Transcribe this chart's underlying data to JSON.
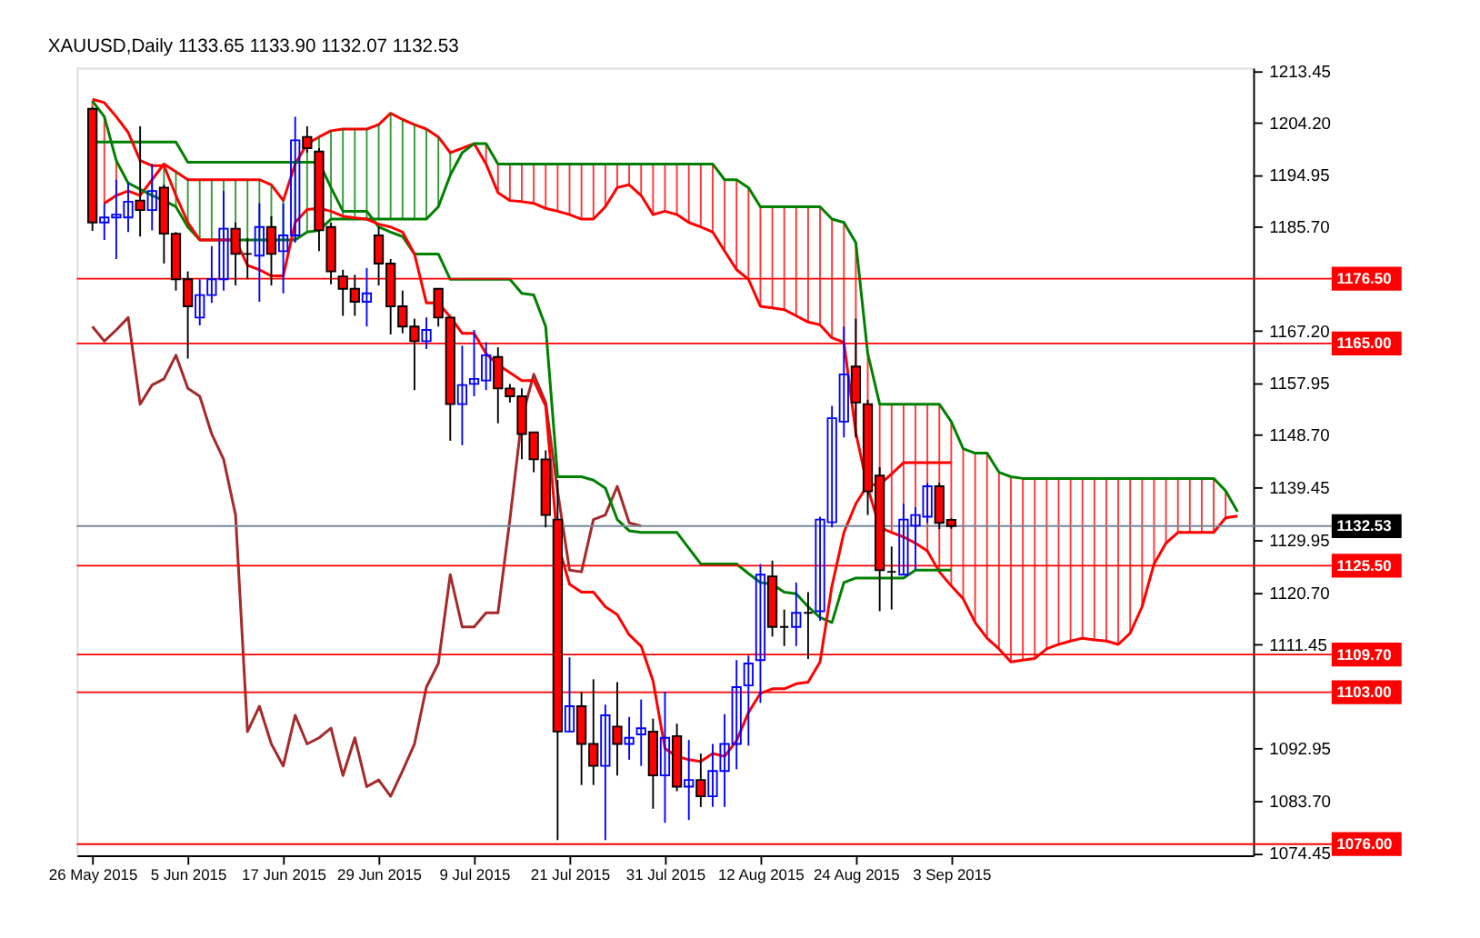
{
  "chart_data": {
    "type": "candlestick",
    "title": "XAUUSD,Daily  1133.65 1133.90 1132.07 1132.53",
    "categories": [
      "26 May 2015",
      null,
      null,
      null,
      null,
      null,
      null,
      null,
      "5 Jun 2015",
      null,
      null,
      null,
      null,
      null,
      null,
      null,
      "17 Jun 2015",
      null,
      null,
      null,
      null,
      null,
      null,
      null,
      "29 Jun 2015",
      null,
      null,
      null,
      null,
      null,
      null,
      null,
      "9 Jul 2015",
      null,
      null,
      null,
      null,
      null,
      null,
      null,
      "21 Jul 2015",
      null,
      null,
      null,
      null,
      null,
      null,
      null,
      "31 Jul 2015",
      null,
      null,
      null,
      null,
      null,
      null,
      null,
      "12 Aug 2015",
      null,
      null,
      null,
      null,
      null,
      null,
      null,
      "24 Aug 2015",
      null,
      null,
      null,
      null,
      null,
      null,
      null,
      "3 Sep 2015",
      null,
      null,
      null,
      null,
      null,
      null,
      null,
      null,
      null,
      null,
      null,
      null,
      null,
      null,
      null,
      null,
      null,
      null,
      null,
      null,
      null,
      null,
      null,
      null
    ],
    "ohlc": [
      [
        1206.7,
        1207.0,
        1185.0,
        1186.5
      ],
      [
        1186.5,
        1189.9,
        1183.4,
        1187.4
      ],
      [
        1187.4,
        1194.1,
        1180.0,
        1187.9
      ],
      [
        1187.4,
        1193.5,
        1184.8,
        1190.2
      ],
      [
        1190.4,
        1203.6,
        1184.0,
        1188.7
      ],
      [
        1188.7,
        1196.9,
        1185.1,
        1192.1
      ],
      [
        1192.7,
        1193.2,
        1179.2,
        1184.5
      ],
      [
        1184.5,
        1184.8,
        1174.4,
        1176.4
      ],
      [
        1176.4,
        1177.8,
        1162.3,
        1171.6
      ],
      [
        1169.6,
        1176.4,
        1168.2,
        1173.6
      ],
      [
        1173.6,
        1182.3,
        1172.2,
        1176.4
      ],
      [
        1176.4,
        1192.1,
        1174.4,
        1185.4
      ],
      [
        1185.4,
        1186.5,
        1175.3,
        1180.9
      ],
      [
        1180.9,
        1183.7,
        1176.4,
        1180.9
      ],
      [
        1180.6,
        1189.9,
        1172.4,
        1185.7
      ],
      [
        1185.7,
        1187.6,
        1175.3,
        1180.9
      ],
      [
        1181.4,
        1189.9,
        1173.9,
        1184.2
      ],
      [
        1184.2,
        1205.3,
        1182.9,
        1201.1
      ],
      [
        1201.7,
        1203.6,
        1198.9,
        1199.7
      ],
      [
        1199.1,
        1199.7,
        1181.4,
        1185.1
      ],
      [
        1185.7,
        1186.5,
        1175.5,
        1177.8
      ],
      [
        1176.9,
        1178.1,
        1169.9,
        1174.7
      ],
      [
        1174.7,
        1177.2,
        1169.9,
        1172.4
      ],
      [
        1172.4,
        1178.4,
        1168.0,
        1173.9
      ],
      [
        1184.2,
        1185.7,
        1175.3,
        1179.2
      ],
      [
        1179.2,
        1180.0,
        1166.6,
        1171.6
      ],
      [
        1171.6,
        1174.4,
        1166.8,
        1168.0
      ],
      [
        1168.0,
        1169.4,
        1156.7,
        1165.4
      ],
      [
        1165.4,
        1169.6,
        1164.0,
        1167.4
      ],
      [
        1174.7,
        1174.7,
        1168.0,
        1169.6
      ],
      [
        1169.6,
        1169.6,
        1147.7,
        1154.2
      ],
      [
        1154.2,
        1164.6,
        1146.9,
        1157.6
      ],
      [
        1157.8,
        1167.4,
        1155.6,
        1158.7
      ],
      [
        1158.4,
        1165.2,
        1156.7,
        1162.9
      ],
      [
        1162.6,
        1164.3,
        1150.8,
        1157.0
      ],
      [
        1157.0,
        1157.8,
        1154.5,
        1155.6
      ],
      [
        1155.6,
        1157.0,
        1144.4,
        1148.9
      ],
      [
        1149.2,
        1149.2,
        1142.1,
        1144.4
      ],
      [
        1144.4,
        1146.0,
        1132.3,
        1134.5
      ],
      [
        1133.7,
        1140.7,
        1076.7,
        1096.0
      ],
      [
        1096.0,
        1109.2,
        1096.0,
        1100.5
      ],
      [
        1100.5,
        1103.1,
        1086.5,
        1093.8
      ],
      [
        1093.8,
        1105.3,
        1086.5,
        1089.9
      ],
      [
        1089.9,
        1100.8,
        1076.7,
        1098.9
      ],
      [
        1096.9,
        1104.8,
        1088.2,
        1093.8
      ],
      [
        1093.8,
        1098.6,
        1091.0,
        1094.9
      ],
      [
        1095.5,
        1101.7,
        1089.9,
        1096.6
      ],
      [
        1096.0,
        1098.3,
        1082.3,
        1088.2
      ],
      [
        1088.2,
        1103.1,
        1079.8,
        1094.9
      ],
      [
        1095.2,
        1097.4,
        1085.4,
        1086.2
      ],
      [
        1086.2,
        1094.5,
        1080.3,
        1087.4
      ],
      [
        1087.4,
        1092.1,
        1082.6,
        1084.5
      ],
      [
        1084.5,
        1093.8,
        1082.6,
        1089.0
      ],
      [
        1089.0,
        1099.1,
        1082.6,
        1093.8
      ],
      [
        1093.8,
        1108.7,
        1089.3,
        1103.9
      ],
      [
        1104.2,
        1109.5,
        1093.5,
        1108.1
      ],
      [
        1108.7,
        1125.8,
        1101.1,
        1123.9
      ],
      [
        1123.6,
        1126.4,
        1112.9,
        1114.6
      ],
      [
        1114.6,
        1117.7,
        1111.2,
        1114.6
      ],
      [
        1114.6,
        1122.5,
        1111.2,
        1117.1
      ],
      [
        1117.1,
        1120.8,
        1108.9,
        1117.1
      ],
      [
        1117.4,
        1134.2,
        1115.7,
        1133.7
      ],
      [
        1133.2,
        1153.9,
        1132.3,
        1151.7
      ],
      [
        1151.1,
        1168.0,
        1148.3,
        1159.5
      ],
      [
        1160.9,
        1169.4,
        1148.3,
        1154.5
      ],
      [
        1154.2,
        1155.0,
        1134.5,
        1138.7
      ],
      [
        1141.5,
        1143.0,
        1117.4,
        1124.7
      ],
      [
        1124.4,
        1128.9,
        1117.7,
        1124.4
      ],
      [
        1123.9,
        1136.5,
        1123.9,
        1133.7
      ],
      [
        1132.6,
        1135.9,
        1124.7,
        1134.5
      ],
      [
        1134.2,
        1140.2,
        1133.1,
        1139.6
      ],
      [
        1139.6,
        1140.2,
        1132.0,
        1133.1
      ],
      [
        1133.65,
        1133.9,
        1132.07,
        1132.53
      ],
      null,
      null,
      null,
      null,
      null,
      null,
      null,
      null,
      null,
      null,
      null,
      null,
      null,
      null,
      null,
      null,
      null,
      null,
      null,
      null,
      null,
      null,
      null,
      null
    ],
    "colors": [
      "#ff0000",
      "#0000ff",
      "#0000ff",
      "#0000ff",
      "#ff0000",
      "#0000ff",
      "#ff0000",
      "#ff0000",
      "#ff0000",
      "#0000ff",
      "#0000ff",
      "#0000ff",
      "#ff0000",
      "#000000",
      "#0000ff",
      "#ff0000",
      "#0000ff",
      "#0000ff",
      "#ff0000",
      "#ff0000",
      "#ff0000",
      "#ff0000",
      "#ff0000",
      "#0000ff",
      "#ff0000",
      "#ff0000",
      "#ff0000",
      "#ff0000",
      "#0000ff",
      "#ff0000",
      "#ff0000",
      "#0000ff",
      "#0000ff",
      "#0000ff",
      "#ff0000",
      "#ff0000",
      "#ff0000",
      "#ff0000",
      "#ff0000",
      "#ff0000",
      "#0000ff",
      "#ff0000",
      "#ff0000",
      "#0000ff",
      "#ff0000",
      "#0000ff",
      "#0000ff",
      "#ff0000",
      "#0000ff",
      "#ff0000",
      "#0000ff",
      "#ff0000",
      "#0000ff",
      "#0000ff",
      "#0000ff",
      "#0000ff",
      "#0000ff",
      "#ff0000",
      "#000000",
      "#0000ff",
      "#000000",
      "#0000ff",
      "#0000ff",
      "#0000ff",
      "#ff0000",
      "#ff0000",
      "#ff0000",
      "#000000",
      "#0000ff",
      "#0000ff",
      "#0000ff",
      "#ff0000",
      "#ff0000",
      null,
      null,
      null,
      null,
      null,
      null,
      null,
      null,
      null,
      null,
      null,
      null,
      null,
      null,
      null,
      null,
      null,
      null,
      null,
      null,
      null,
      null,
      null,
      null
    ],
    "series": [
      {
        "type": "line",
        "color": "#ff0000",
        "lower": [
          1189.9,
          1189.9,
          1191.3,
          null,
          null,
          null,
          null,
          null,
          null,
          null,
          null,
          null,
          null,
          null,
          null,
          null,
          null,
          null,
          null,
          null,
          null,
          null,
          null,
          null,
          null,
          null,
          null,
          null,
          null,
          null,
          null,
          null,
          null,
          1196.9,
          1191.8,
          1190.4,
          1190.2,
          1189.9,
          1189.0,
          1188.5,
          1187.9,
          1187.1,
          1187.1,
          1189.3,
          1192.7,
          1193.2,
          1191.3,
          1187.9,
          1188.5,
          1187.9,
          1186.5,
          1185.7,
          1184.8,
          1181.4,
          1178.1,
          1176.4,
          1171.6,
          1171.3,
          1171.0,
          1169.9,
          1168.8,
          1168.3,
          1166.0,
          1165.2,
          1149.1,
          1139.3,
          1132.3,
          1131.4,
          1130.6,
          1129.5,
          1128.1,
          1124.4,
          1121.9,
          1119.6,
          1115.4,
          1112.6,
          1110.7,
          1108.4,
          1108.7,
          1109.0,
          1110.7,
          1111.5,
          1112.1,
          1112.6,
          1112.3,
          1112.1,
          1111.5,
          1113.5,
          1118.2,
          1125.8,
          1129.5,
          1131.4,
          1131.4,
          1131.4,
          1131.4,
          1134.0,
          null
        ],
        "upper": [
          1208.1,
          1205.3,
          1197.5,
          null,
          null,
          null,
          null,
          null,
          null,
          null,
          null,
          null,
          null,
          null,
          null,
          null,
          null,
          null,
          null,
          null,
          null,
          null,
          null,
          null,
          null,
          null,
          null,
          null,
          null,
          null,
          null,
          null,
          null,
          1200.5,
          1196.9,
          1196.9,
          1196.9,
          1196.9,
          1196.9,
          1196.9,
          1196.9,
          1196.9,
          1196.9,
          1196.9,
          1196.9,
          1196.9,
          1196.9,
          1196.9,
          1196.9,
          1196.9,
          1196.9,
          1196.9,
          1196.9,
          1194.1,
          1194.1,
          1192.7,
          1189.3,
          1189.3,
          1189.3,
          1189.3,
          1189.3,
          1189.3,
          1187.1,
          1186.5,
          1182.9,
          1163.2,
          1154.2,
          1154.2,
          1154.2,
          1154.2,
          1154.2,
          1154.2,
          1151.1,
          1146.3,
          1145.5,
          1145.5,
          1142.1,
          1141.3,
          1141.0,
          1141.0,
          1141.0,
          1141.0,
          1141.0,
          1141.0,
          1141.0,
          1141.0,
          1141.0,
          1141.0,
          1141.0,
          1141.0,
          1141.0,
          1141.0,
          1141.0,
          1141.0,
          1141.0,
          1138.8,
          null
        ],
        "values": [
          null,
          1189.9,
          1191.3,
          1192.1,
          1191.3,
          1194.1,
          1196.9,
          1195.5,
          1194.1,
          1194.1,
          1194.1,
          1194.1,
          1194.1,
          1194.1,
          1194.1,
          1193.2,
          1190.4,
          1196.9,
          1200.5,
          1201.7,
          1202.8,
          1203.1,
          1203.1,
          1203.1,
          1203.9,
          1205.9,
          1204.8,
          1203.9,
          1203.1,
          1201.7,
          1198.9,
          1199.7,
          1200.5,
          1196.9,
          1191.8,
          1190.4,
          1190.2,
          1189.9,
          1189.0,
          1188.5,
          1187.9,
          1187.1,
          1187.1,
          1189.3,
          1192.7,
          1193.2,
          1191.3,
          1187.9,
          1188.5,
          1187.9,
          1186.5,
          1185.7,
          1184.8,
          1181.4,
          1178.1,
          1176.4,
          1171.6,
          1171.3,
          1171.0,
          1169.9,
          1168.8,
          1168.3,
          1166.0,
          1165.2,
          1149.1,
          1139.3,
          1132.3,
          1131.4,
          1130.6,
          1129.5,
          1128.1,
          1124.4,
          1121.9,
          1119.6,
          1115.4,
          1112.6,
          1110.7,
          1108.4,
          1108.7,
          1109.0,
          1110.7,
          1111.5,
          1112.1,
          1112.6,
          1112.3,
          1112.1,
          1111.5,
          1113.5,
          1118.2,
          1125.8,
          1129.5,
          1131.4,
          1131.4,
          1131.4,
          1131.4,
          1134.0,
          1134.3
        ]
      },
      {
        "type": "line",
        "color": "#008000",
        "lower": [
          null,
          null,
          null,
          null,
          null,
          1191.3,
          1190.4,
          1189.3,
          1185.7,
          1183.4,
          1183.4,
          1183.4,
          1183.4,
          1183.4,
          1183.4,
          1183.4,
          1183.4,
          1183.4,
          1184.8,
          1185.1,
          1187.1,
          1187.1,
          1187.1,
          1187.1,
          1187.1,
          1187.1,
          1187.1,
          1187.1,
          1187.1,
          1189.3,
          1194.9,
          null,
          null,
          null,
          null,
          null,
          null,
          null,
          null,
          null,
          null,
          null,
          null,
          null,
          null,
          null,
          null,
          null,
          null,
          null,
          null,
          null,
          null,
          null,
          null,
          null,
          null,
          null,
          null,
          null,
          null,
          null,
          null,
          null,
          null,
          null,
          null,
          null,
          null,
          null,
          null,
          null,
          null,
          null,
          null,
          null,
          null,
          null,
          null,
          null,
          null,
          null,
          null,
          null,
          null,
          null,
          null,
          null,
          null,
          null,
          null,
          null,
          null,
          null,
          null,
          null,
          null
        ],
        "upper": [
          null,
          null,
          null,
          null,
          null,
          1194.1,
          1196.9,
          1195.5,
          1194.1,
          1194.1,
          1194.1,
          1194.1,
          1194.1,
          1194.1,
          1194.1,
          1193.2,
          1190.4,
          1196.9,
          1200.5,
          1201.7,
          1202.8,
          1203.1,
          1203.1,
          1203.1,
          1203.9,
          1205.9,
          1204.8,
          1203.9,
          1203.1,
          1201.7,
          1198.9,
          null,
          null,
          null,
          null,
          null,
          null,
          null,
          null,
          null,
          null,
          null,
          null,
          null,
          null,
          null,
          null,
          null,
          null,
          null,
          null,
          null,
          null,
          null,
          null,
          null,
          null,
          null,
          null,
          null,
          null,
          null,
          null,
          null,
          null,
          null,
          null,
          null,
          null,
          null,
          null,
          null,
          null,
          null,
          null,
          null,
          null,
          null,
          null,
          null,
          null,
          null,
          null,
          null,
          null,
          null,
          null,
          null,
          null,
          null,
          null,
          null,
          null,
          null,
          null,
          null,
          null
        ],
        "values": [
          1208.1,
          1205.3,
          1197.5,
          1193.5,
          1192.4,
          1191.3,
          1190.4,
          1189.3,
          1185.7,
          1183.4,
          1183.4,
          1183.4,
          1183.4,
          1183.4,
          1183.4,
          1183.4,
          1183.4,
          1183.4,
          1184.8,
          1185.1,
          1187.1,
          1187.1,
          1187.1,
          1187.1,
          1187.1,
          1187.1,
          1187.1,
          1187.1,
          1187.1,
          1189.3,
          1194.9,
          1198.9,
          1200.5,
          1200.5,
          1196.9,
          1196.9,
          1196.9,
          1196.9,
          1196.9,
          1196.9,
          1196.9,
          1196.9,
          1196.9,
          1196.9,
          1196.9,
          1196.9,
          1196.9,
          1196.9,
          1196.9,
          1196.9,
          1196.9,
          1196.9,
          1196.9,
          1194.1,
          1194.1,
          1192.7,
          1189.3,
          1189.3,
          1189.3,
          1189.3,
          1189.3,
          1189.3,
          1187.1,
          1186.5,
          1182.9,
          1163.2,
          1154.2,
          1154.2,
          1154.2,
          1154.2,
          1154.2,
          1154.2,
          1151.1,
          1146.3,
          1145.5,
          1145.5,
          1142.1,
          1141.3,
          1141.0,
          1141.0,
          1141.0,
          1141.0,
          1141.0,
          1141.0,
          1141.0,
          1141.0,
          1141.0,
          1141.0,
          1141.0,
          1141.0,
          1141.0,
          1141.0,
          1141.0,
          1141.0,
          1141.0,
          1138.8,
          1135.1
        ]
      },
      {
        "type": "line",
        "color": "#a52a2a",
        "values": [
          1168.0,
          1165.4,
          1167.4,
          1169.6,
          1154.2,
          1157.6,
          1158.7,
          1162.9,
          1157.0,
          1155.6,
          1148.9,
          1144.4,
          1134.5,
          1096.0,
          1100.5,
          1093.8,
          1089.9,
          1098.9,
          1093.8,
          1094.9,
          1096.6,
          1088.2,
          1094.9,
          1086.2,
          1087.4,
          1084.5,
          1089.0,
          1093.8,
          1103.9,
          1108.1,
          1123.9,
          1114.6,
          1114.6,
          1117.1,
          1117.1,
          1133.7,
          1151.7,
          1159.5,
          1154.5,
          1138.7,
          1124.7,
          1124.4,
          1133.7,
          1134.5,
          1139.6,
          1133.1,
          1132.53,
          null,
          null,
          null,
          null,
          null,
          null,
          null,
          null,
          null,
          null,
          null,
          null,
          null,
          null,
          null,
          null,
          null,
          null,
          null,
          null,
          null,
          null,
          null,
          null,
          null,
          null,
          null,
          null,
          null,
          null,
          null,
          null,
          null,
          null,
          null,
          null,
          null,
          null,
          null,
          null,
          null,
          null,
          null,
          null,
          null,
          null,
          null,
          null,
          null,
          null
        ]
      },
      {
        "type": "line",
        "color": "#008000",
        "values": [
          1200.8,
          1200.8,
          1200.8,
          1200.8,
          1200.8,
          1200.8,
          1200.8,
          1200.8,
          1197.2,
          1197.2,
          1197.2,
          1197.2,
          1197.2,
          1197.2,
          1197.2,
          1197.2,
          1197.2,
          1197.2,
          1197.2,
          1197.2,
          1192.7,
          1188.5,
          1188.5,
          1188.5,
          1185.7,
          1184.8,
          1184.0,
          1180.9,
          1180.9,
          1180.9,
          1176.4,
          1176.4,
          1176.4,
          1176.4,
          1176.4,
          1176.4,
          1173.9,
          1173.6,
          1168.0,
          1141.3,
          1141.3,
          1141.3,
          1140.7,
          1139.3,
          1133.7,
          1131.7,
          1131.4,
          1131.4,
          1131.4,
          1131.4,
          1128.6,
          1125.8,
          1125.8,
          1125.8,
          1125.8,
          1124.1,
          1122.5,
          1122.2,
          1120.8,
          1120.5,
          1118.2,
          1116.3,
          1115.4,
          1122.5,
          1123.3,
          1123.3,
          1123.3,
          1123.3,
          1123.3,
          1124.7,
          1124.7,
          1124.7,
          1124.7,
          null,
          null,
          null,
          null,
          null,
          null,
          null,
          null,
          null,
          null,
          null,
          null,
          null,
          null,
          null,
          null,
          null,
          null,
          null,
          null,
          null,
          null,
          null,
          null
        ]
      },
      {
        "type": "line",
        "color": "#ff0000",
        "values": [
          1208.4,
          1207.8,
          1205.3,
          1202.5,
          1197.5,
          1196.6,
          1196.6,
          1191.3,
          1186.5,
          1183.4,
          1183.4,
          1183.4,
          1183.4,
          1178.9,
          1178.1,
          1177.0,
          1177.0,
          1186.5,
          1188.8,
          1189.0,
          1188.5,
          1187.6,
          1187.3,
          1187.1,
          1186.2,
          1185.7,
          1184.8,
          1180.9,
          1172.2,
          1172.2,
          1169.7,
          1166.8,
          1166.8,
          1163.2,
          1161.2,
          1159.8,
          1158.4,
          1158.4,
          1153.9,
          1129.5,
          1122.2,
          1120.8,
          1120.8,
          1118.2,
          1116.8,
          1113.2,
          1111.2,
          1105.0,
          1093.0,
          1091.6,
          1091.0,
          1090.7,
          1092.1,
          1091.6,
          1094.4,
          1099.4,
          1102.8,
          1103.6,
          1103.6,
          1104.5,
          1104.8,
          1108.4,
          1121.9,
          1131.4,
          1136.5,
          1139.9,
          1139.9,
          1141.8,
          1143.8,
          1143.8,
          1143.8,
          1143.8,
          1143.8,
          null,
          null,
          null,
          null,
          null,
          null,
          null,
          null,
          null,
          null,
          null,
          null,
          null,
          null,
          null,
          null,
          null,
          null,
          null,
          null,
          null,
          null,
          null,
          null
        ]
      }
    ],
    "ylim": [
      1074.0,
      1214.0
    ],
    "yticks": [
      {
        "value": 1213.45,
        "label": "1213.45"
      },
      {
        "value": 1204.2,
        "label": "1204.20"
      },
      {
        "value": 1194.95,
        "label": "1194.95"
      },
      {
        "value": 1185.7,
        "label": "1185.70"
      },
      {
        "value": 1167.2,
        "label": "1167.20"
      },
      {
        "value": 1157.95,
        "label": "1157.95"
      },
      {
        "value": 1148.7,
        "label": "1148.70"
      },
      {
        "value": 1139.45,
        "label": "1139.45"
      },
      {
        "value": 1129.95,
        "label": "1129.95"
      },
      {
        "value": 1120.7,
        "label": "1120.70"
      },
      {
        "value": 1111.45,
        "label": "1111.45"
      },
      {
        "value": 1092.95,
        "label": "1092.95"
      },
      {
        "value": 1083.7,
        "label": "1083.70"
      },
      {
        "value": 1074.45,
        "label": "1074.45"
      }
    ],
    "ref_lines": [
      {
        "axis": "y",
        "value": 1176.5,
        "label": "1176.50",
        "color": "#ff0000"
      },
      {
        "axis": "y",
        "value": 1165.0,
        "label": "1165.00",
        "color": "#ff0000"
      },
      {
        "axis": "y",
        "value": 1132.53,
        "label": "1132.53",
        "color": "#778899"
      },
      {
        "axis": "y",
        "value": 1125.5,
        "label": "1125.50",
        "color": "#ff0000"
      },
      {
        "axis": "y",
        "value": 1109.7,
        "label": "1109.70",
        "color": "#ff0000"
      },
      {
        "axis": "y",
        "value": 1103.0,
        "label": "1103.00",
        "color": "#ff0000"
      },
      {
        "axis": "y",
        "value": 1076.0,
        "label": "1076.00",
        "color": "#ff0000"
      }
    ],
    "grid": false
  }
}
